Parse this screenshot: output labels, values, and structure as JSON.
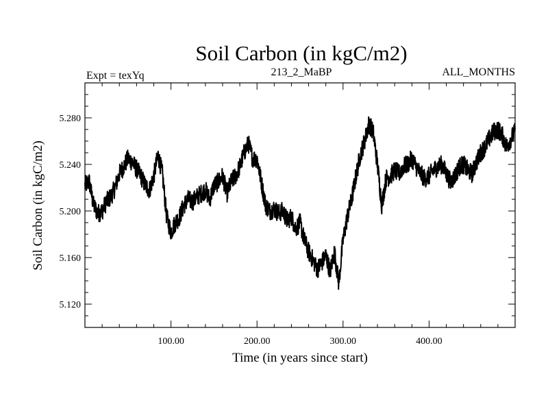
{
  "chart_data": {
    "type": "line",
    "title": "Soil Carbon (in kgC/m2)",
    "subtitle_left": "Expt = texYq",
    "subtitle_center": "213_2_MaBP",
    "subtitle_right": "ALL_MONTHS",
    "xlabel": "Time (in years since start)",
    "ylabel": "Soil Carbon (in kgC/m2)",
    "xlim": [
      0,
      500
    ],
    "ylim": [
      5.1,
      5.31
    ],
    "x_ticks": [
      100,
      200,
      300,
      400
    ],
    "x_tick_labels": [
      "100.00",
      "200.00",
      "300.00",
      "400.00"
    ],
    "y_ticks": [
      5.12,
      5.16,
      5.2,
      5.24,
      5.28
    ],
    "y_tick_labels": [
      "5.120",
      "5.160",
      "5.200",
      "5.240",
      "5.280"
    ],
    "grid": false,
    "line_color": "#000000",
    "series": [
      {
        "x": [
          0,
          5,
          10,
          15,
          20,
          25,
          30,
          35,
          40,
          45,
          50,
          55,
          60,
          65,
          70,
          75,
          80,
          85,
          90,
          95,
          100,
          105,
          110,
          115,
          120,
          125,
          130,
          135,
          140,
          145,
          150,
          155,
          160,
          165,
          170,
          175,
          180,
          185,
          190,
          195,
          200,
          205,
          210,
          215,
          220,
          225,
          230,
          235,
          240,
          245,
          250,
          255,
          260,
          265,
          270,
          275,
          280,
          285,
          290,
          295,
          300,
          305,
          310,
          315,
          320,
          325,
          330,
          335,
          340,
          345,
          350,
          355,
          360,
          365,
          370,
          375,
          380,
          385,
          390,
          395,
          400,
          405,
          410,
          415,
          420,
          425,
          430,
          435,
          440,
          445,
          450,
          455,
          460,
          465,
          470,
          475,
          480,
          485,
          490,
          495,
          500
        ],
        "values": [
          5.222,
          5.225,
          5.205,
          5.198,
          5.2,
          5.208,
          5.212,
          5.22,
          5.232,
          5.238,
          5.245,
          5.242,
          5.236,
          5.23,
          5.222,
          5.218,
          5.23,
          5.248,
          5.232,
          5.195,
          5.182,
          5.19,
          5.195,
          5.205,
          5.21,
          5.208,
          5.212,
          5.215,
          5.218,
          5.21,
          5.222,
          5.225,
          5.23,
          5.215,
          5.225,
          5.23,
          5.238,
          5.25,
          5.258,
          5.245,
          5.245,
          5.225,
          5.205,
          5.2,
          5.202,
          5.198,
          5.2,
          5.192,
          5.195,
          5.185,
          5.19,
          5.175,
          5.165,
          5.158,
          5.15,
          5.155,
          5.162,
          5.148,
          5.165,
          5.138,
          5.175,
          5.195,
          5.21,
          5.23,
          5.248,
          5.26,
          5.275,
          5.268,
          5.24,
          5.205,
          5.228,
          5.23,
          5.235,
          5.232,
          5.238,
          5.24,
          5.245,
          5.238,
          5.232,
          5.228,
          5.23,
          5.235,
          5.238,
          5.24,
          5.232,
          5.225,
          5.23,
          5.238,
          5.24,
          5.235,
          5.232,
          5.242,
          5.25,
          5.255,
          5.262,
          5.268,
          5.27,
          5.265,
          5.255,
          5.262,
          5.268
        ]
      }
    ]
  }
}
